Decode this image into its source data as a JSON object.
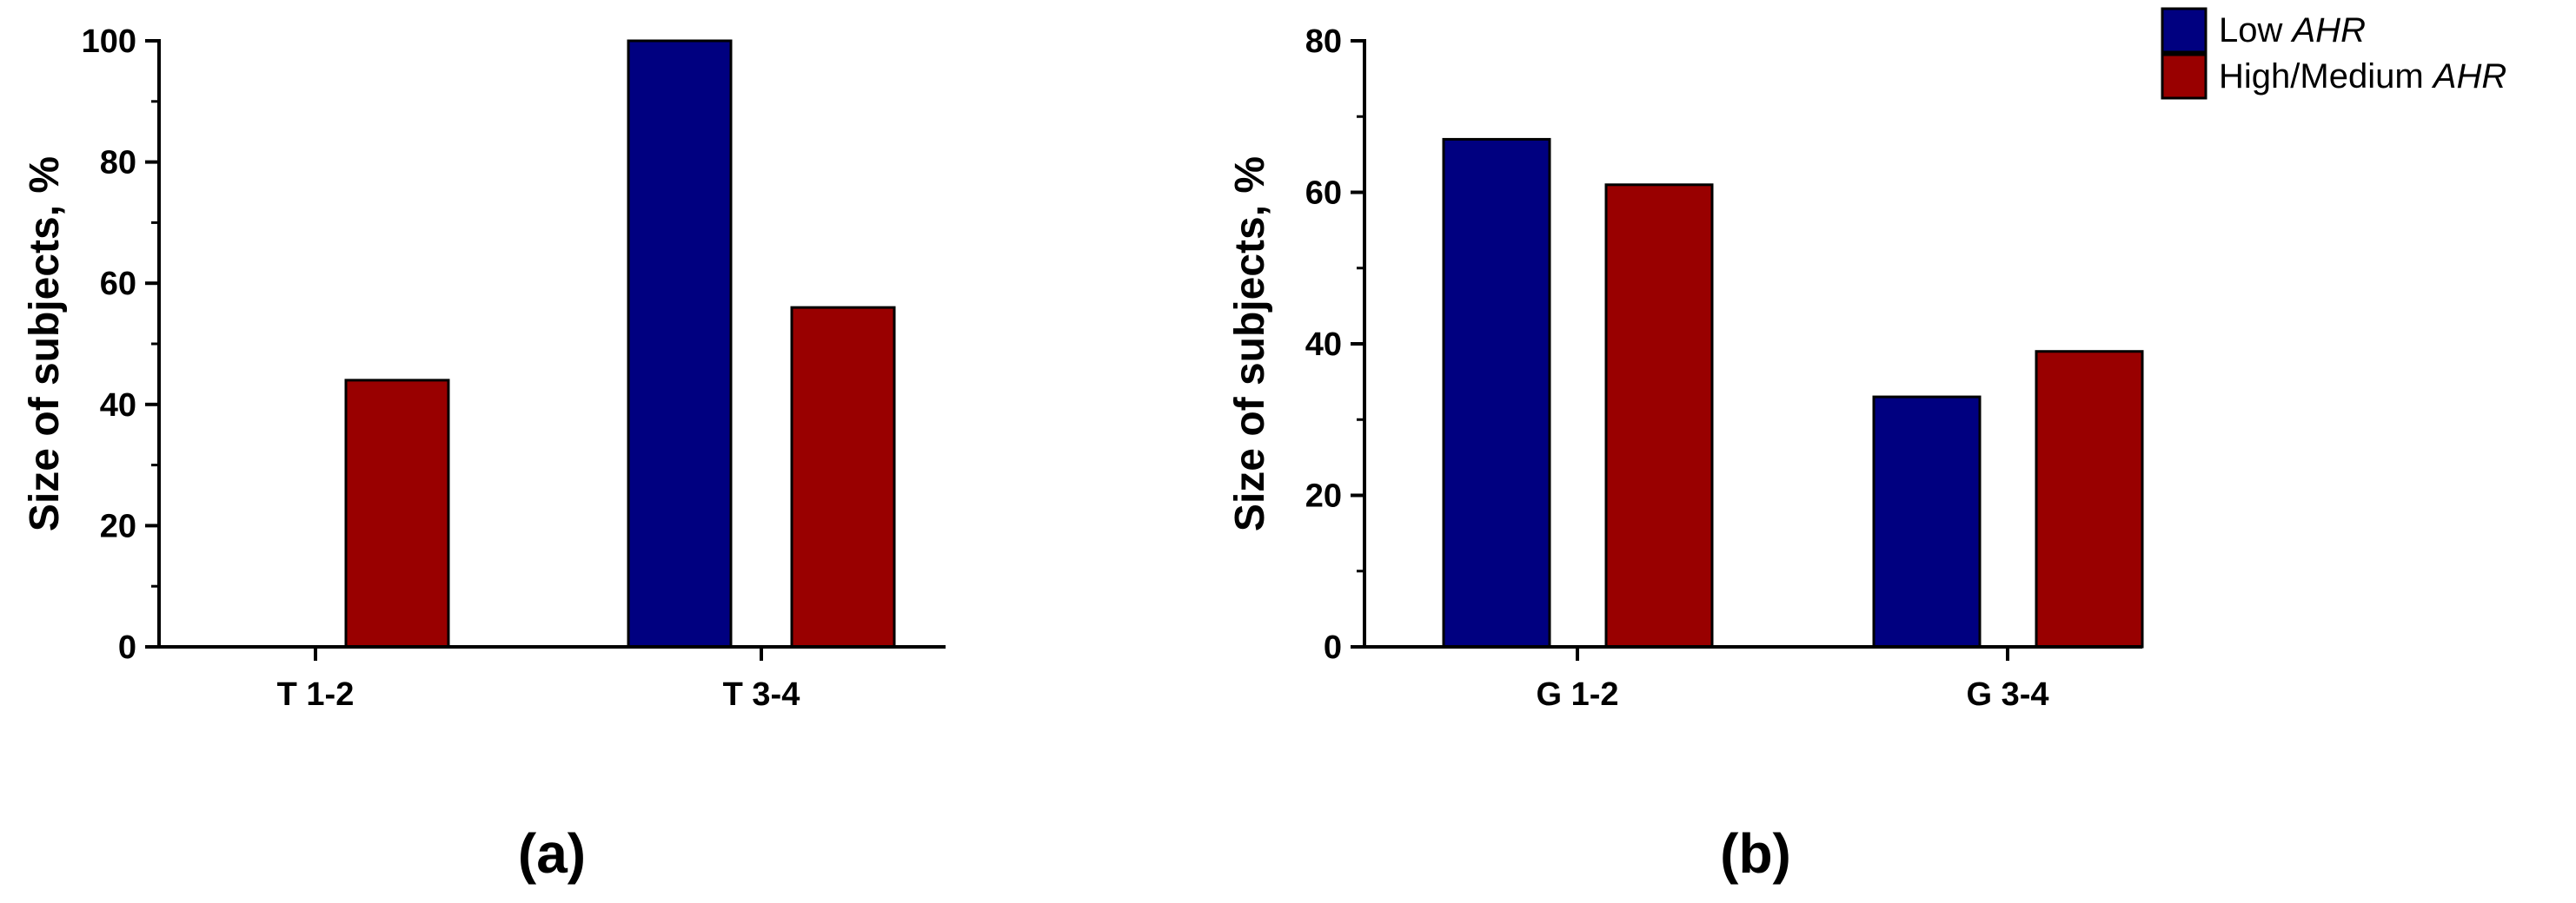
{
  "colors": {
    "low": "#000080",
    "high": "#990000"
  },
  "legend": {
    "placement": "top-right",
    "items": [
      {
        "text": "Low ",
        "italic": "AHR",
        "color": "#000080"
      },
      {
        "text": "High/Medium ",
        "italic": "AHR",
        "color": "#990000"
      }
    ]
  },
  "chart_data": [
    {
      "type": "bar",
      "panel_label": "(a)",
      "ylabel": "Size of subjects, %",
      "ylim": [
        0,
        100
      ],
      "yticks": [
        0,
        20,
        40,
        60,
        80,
        100
      ],
      "categories": [
        "T 1-2",
        "T 3-4"
      ],
      "series": [
        {
          "name": "Low AHR",
          "values": [
            0,
            100
          ]
        },
        {
          "name": "High/Medium AHR",
          "values": [
            44,
            56
          ]
        }
      ]
    },
    {
      "type": "bar",
      "panel_label": "(b)",
      "ylabel": "Size of subjects, %",
      "ylim": [
        0,
        80
      ],
      "yticks": [
        0,
        20,
        40,
        60,
        80
      ],
      "categories": [
        "G 1-2",
        "G 3-4"
      ],
      "series": [
        {
          "name": "Low AHR",
          "values": [
            67,
            33
          ]
        },
        {
          "name": "High/Medium AHR",
          "values": [
            61,
            39
          ]
        }
      ]
    }
  ]
}
